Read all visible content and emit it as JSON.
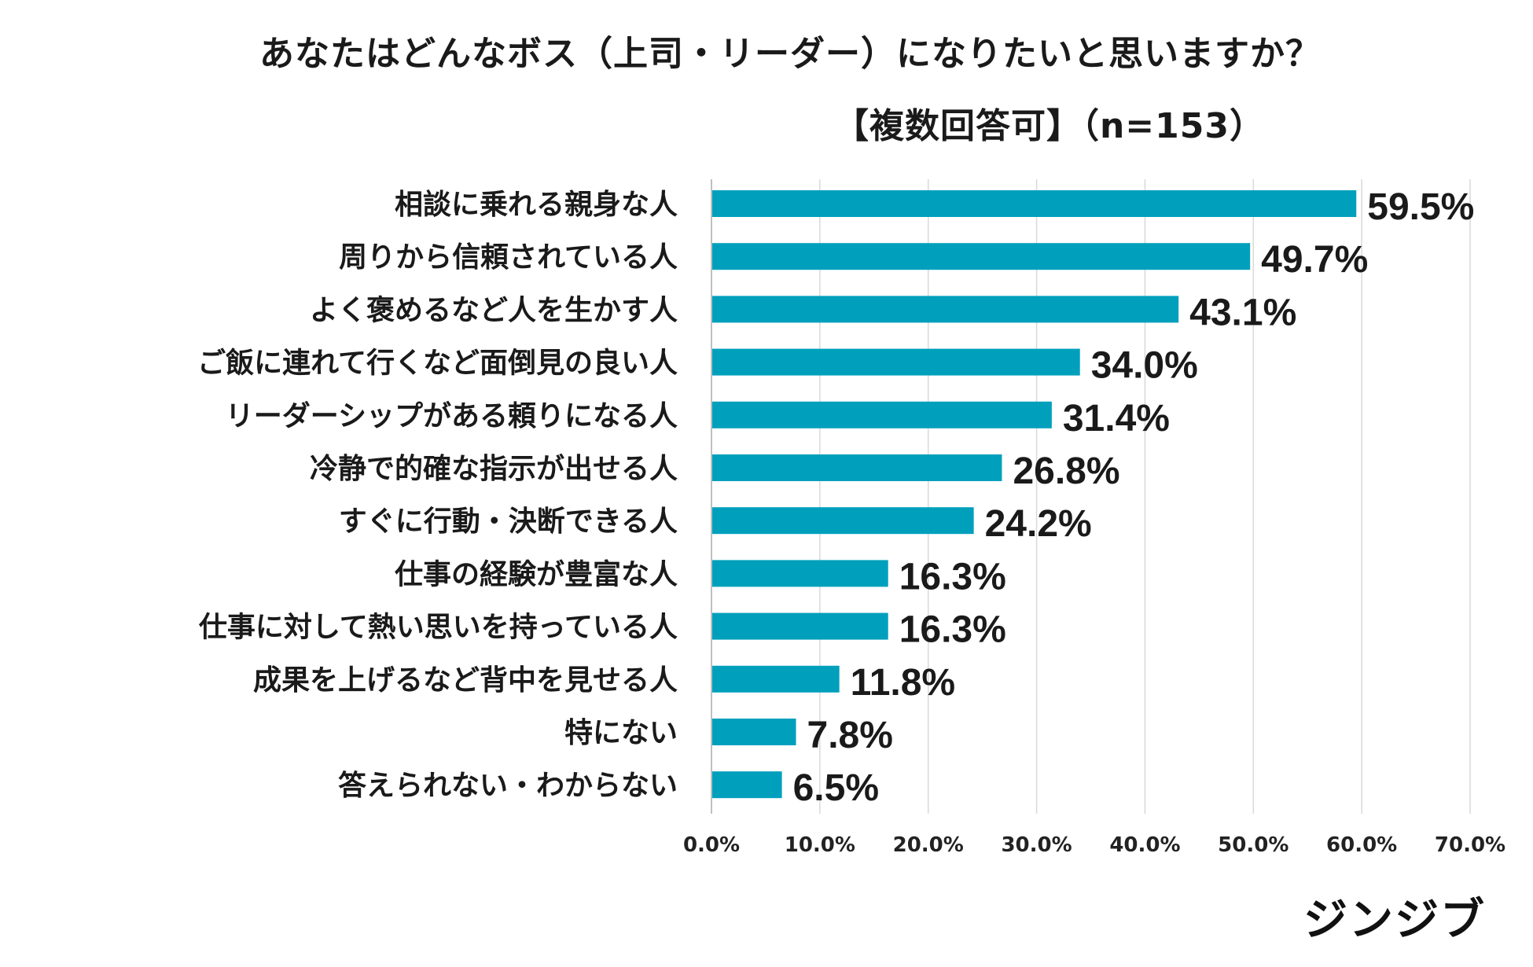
{
  "chart_data": {
    "type": "bar",
    "orientation": "horizontal",
    "title": "あなたはどんなボス（上司・リーダー）になりたいと思いますか？",
    "subtitle": "【複数回答可】（n=153）",
    "categories": [
      "相談に乗れる親身な人",
      "周りから信頼されている人",
      "よく褒めるなど人を生かす人",
      "ご飯に連れて行くなど面倒見の良い人",
      "リーダーシップがある頼りになる人",
      "冷静で的確な指示が出せる人",
      "すぐに行動・決断できる人",
      "仕事の経験が豊富な人",
      "仕事に対して熱い思いを持っている人",
      "成果を上げるなど背中を見せる人",
      "特にない",
      "答えられない・わからない"
    ],
    "values": [
      59.5,
      49.7,
      43.1,
      34.0,
      31.4,
      26.8,
      24.2,
      16.3,
      16.3,
      11.8,
      7.8,
      6.5
    ],
    "value_labels": [
      "59.5%",
      "49.7%",
      "43.1%",
      "34.0%",
      "31.4%",
      "26.8%",
      "24.2%",
      "16.3%",
      "16.3%",
      "11.8%",
      "7.8%",
      "6.5%"
    ],
    "xlim": [
      0,
      70
    ],
    "xticks": [
      0,
      10,
      20,
      30,
      40,
      50,
      60,
      70
    ],
    "xtick_labels": [
      "0.0%",
      "10.0%",
      "20.0%",
      "30.0%",
      "40.0%",
      "50.0%",
      "60.0%",
      "70.0%"
    ],
    "grid": true,
    "bar_color": "#00a0bc",
    "grid_color": "#d9d9d9"
  },
  "brand": {
    "logo_text": "ジンジブ"
  }
}
